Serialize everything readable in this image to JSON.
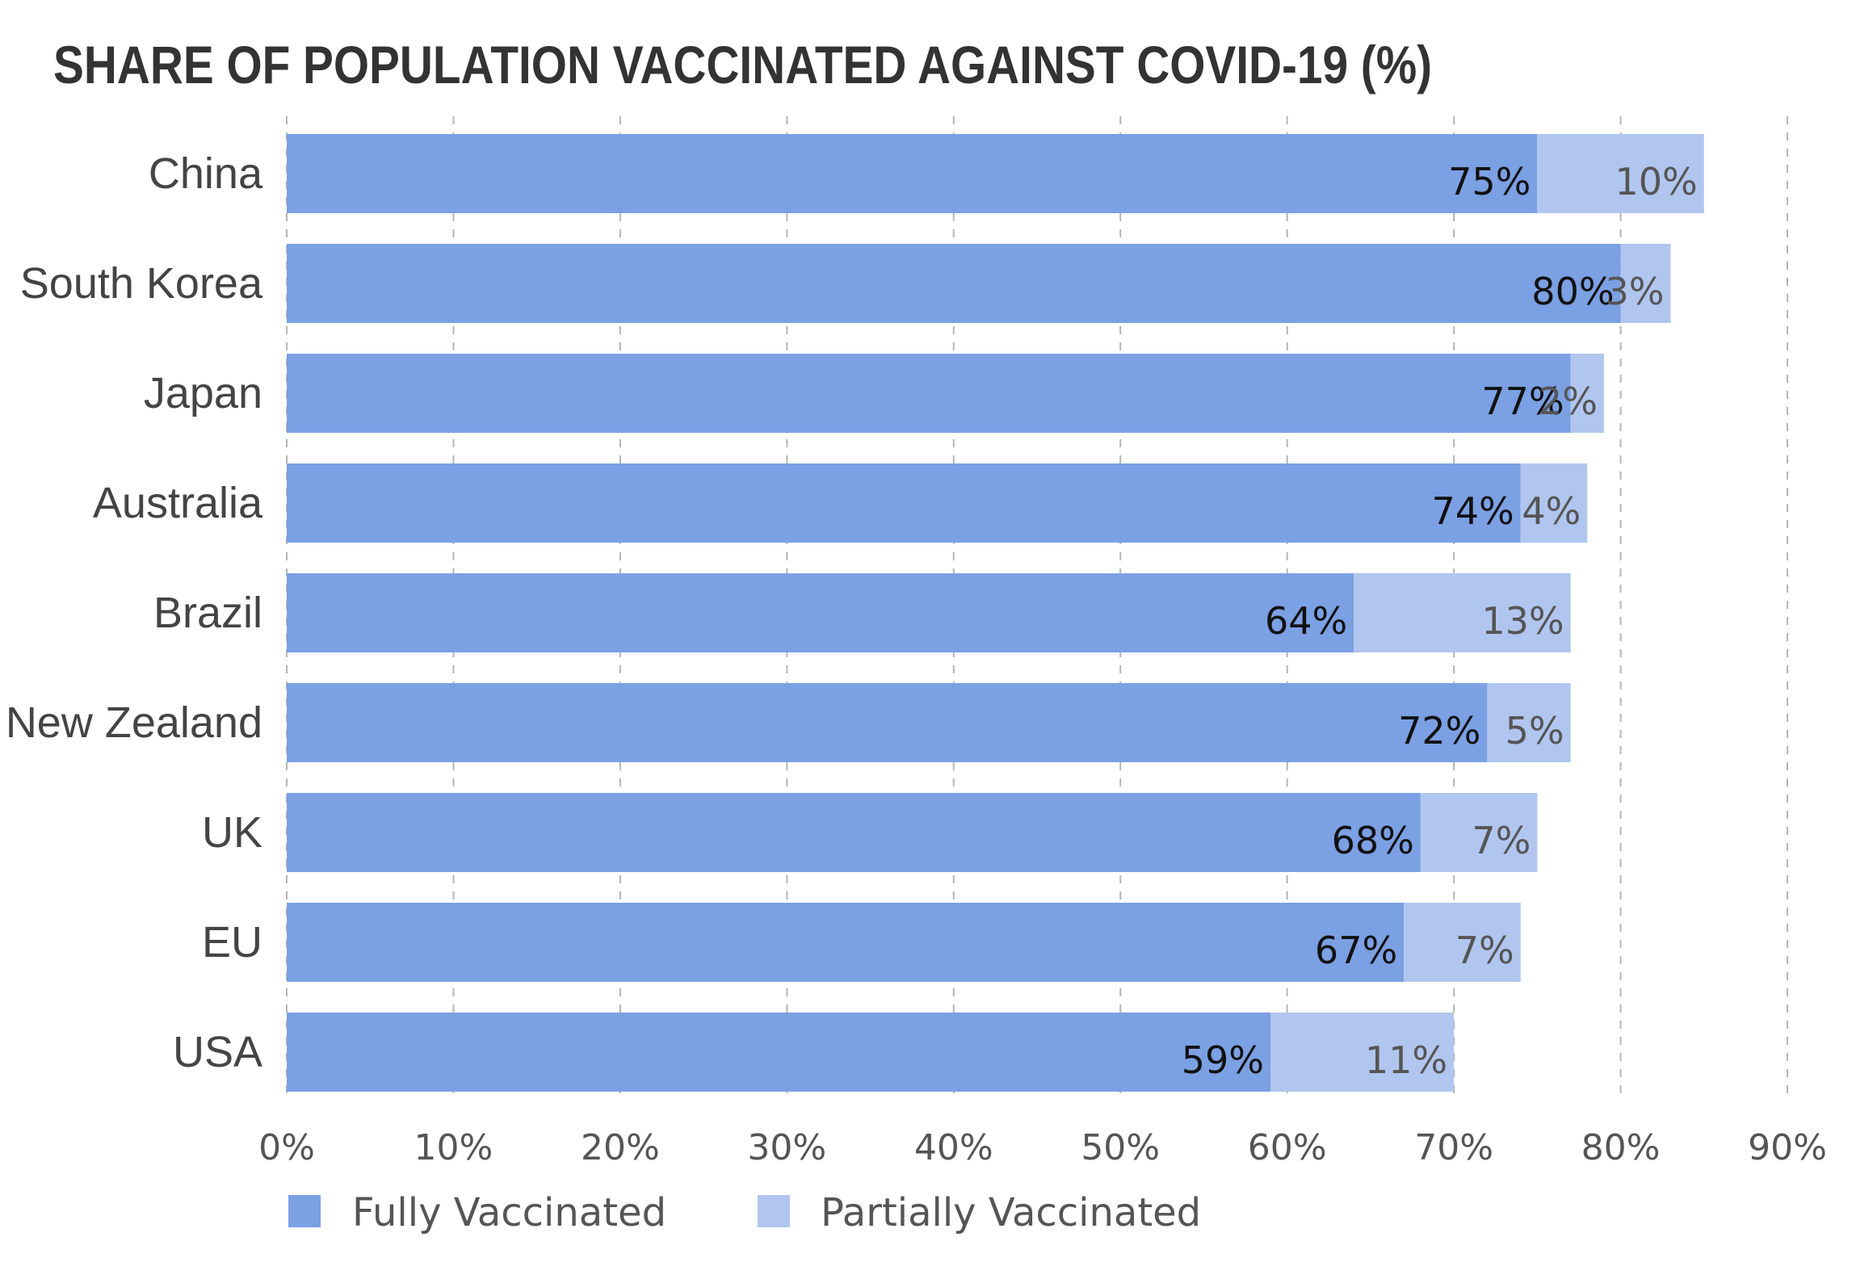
{
  "chart_data": {
    "type": "bar",
    "orientation": "horizontal",
    "stacked": true,
    "title": "SHARE OF POPULATION VACCINATED AGAINST COVID-19 (%)",
    "categories": [
      "China",
      "South Korea",
      "Japan",
      "Australia",
      "Brazil",
      "New Zealand",
      "UK",
      "EU",
      "USA"
    ],
    "series": [
      {
        "name": "Fully Vaccinated",
        "color": "#7ba0e3",
        "values": [
          75,
          80,
          77,
          74,
          64,
          72,
          68,
          67,
          59
        ]
      },
      {
        "name": "Partially Vaccinated",
        "color": "#b1c6ef",
        "values": [
          10,
          3,
          2,
          4,
          13,
          5,
          7,
          7,
          11
        ]
      }
    ],
    "xlim": [
      0,
      90
    ],
    "xticks": [
      0,
      10,
      20,
      30,
      40,
      50,
      60,
      70,
      80,
      90
    ],
    "tick_suffix": "%",
    "grid": "vertical dashed",
    "legend": "bottom-left"
  }
}
